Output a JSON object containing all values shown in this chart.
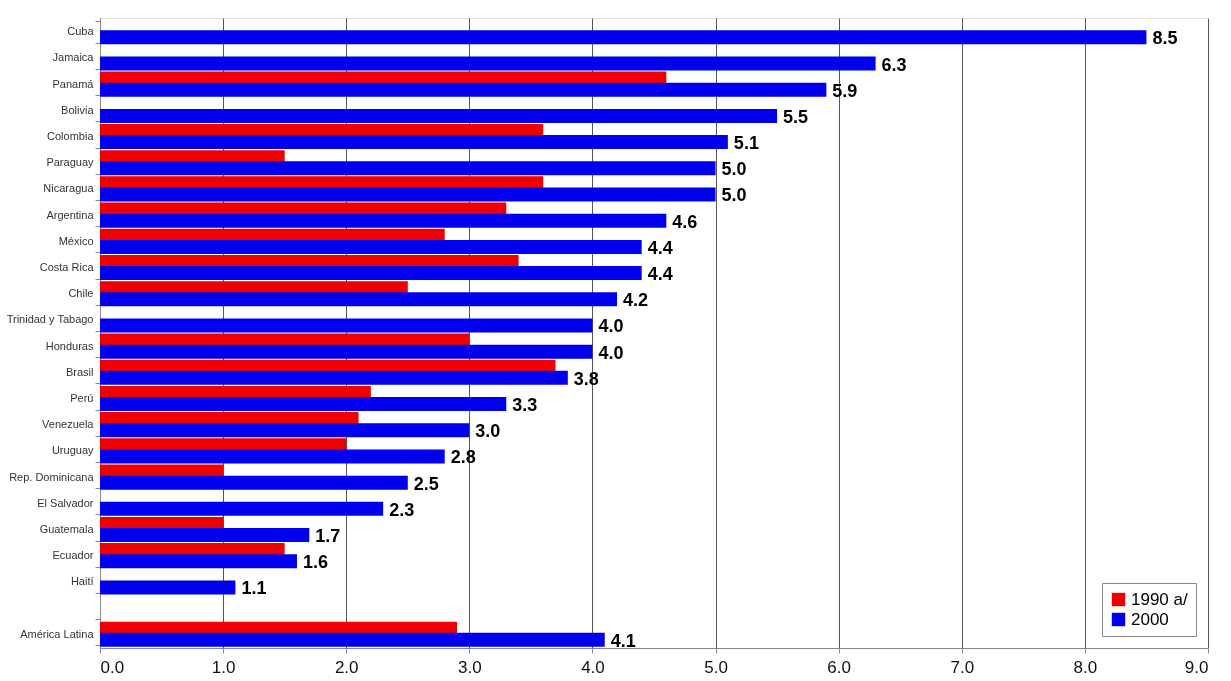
{
  "chart_data": {
    "type": "bar",
    "orientation": "horizontal",
    "categories": [
      "Cuba",
      "Jamaica",
      "Panamá",
      "Bolivia",
      "Colombia",
      "Paraguay",
      "Nicaragua",
      "Argentina",
      "México",
      "Costa Rica",
      "Chile",
      "Trinidad y Tabago",
      "Honduras",
      "Brasil",
      "Perú",
      "Venezuela",
      "Uruguay",
      "Rep. Dominicana",
      "El Salvador",
      "Guatemala",
      "Ecuador",
      "Haití",
      null,
      "América Latina"
    ],
    "series": [
      {
        "name": "1990 a/",
        "color": "#ee0000",
        "values": [
          null,
          null,
          4.6,
          null,
          3.6,
          1.5,
          3.6,
          3.3,
          2.8,
          3.4,
          2.5,
          null,
          3.0,
          3.7,
          2.2,
          2.1,
          2.0,
          1.0,
          null,
          1.0,
          1.5,
          null,
          null,
          2.9
        ]
      },
      {
        "name": "2000",
        "color": "#0000ee",
        "values": [
          8.5,
          6.3,
          5.9,
          5.5,
          5.1,
          5.0,
          5.0,
          4.6,
          4.4,
          4.4,
          4.2,
          4.0,
          4.0,
          3.8,
          3.3,
          3.0,
          2.8,
          2.5,
          2.3,
          1.7,
          1.6,
          1.1,
          null,
          4.1
        ],
        "value_labels": [
          "8.5",
          "6.3",
          "5.9",
          "5.5",
          "5.1",
          "5.0",
          "5.0",
          "4.6",
          "4.4",
          "4.4",
          "4.2",
          "4.0",
          "4.0",
          "3.8",
          "3.3",
          "3.0",
          "2.8",
          "2.5",
          "2.3",
          "1.7",
          "1.6",
          "1.1",
          null,
          "4.1"
        ]
      }
    ],
    "xlim": [
      0,
      9
    ],
    "xticks": [
      {
        "value": 0,
        "label": "0.0"
      },
      {
        "value": 1,
        "label": "1.0"
      },
      {
        "value": 2,
        "label": "2.0"
      },
      {
        "value": 3,
        "label": "3.0"
      },
      {
        "value": 4,
        "label": "4.0"
      },
      {
        "value": 5,
        "label": "5.0"
      },
      {
        "value": 6,
        "label": "6.0"
      },
      {
        "value": 7,
        "label": "7.0"
      },
      {
        "value": 8,
        "label": "8.0"
      },
      {
        "value": 9,
        "label": "9.0"
      }
    ],
    "grid": "x",
    "legend": "bottom right"
  }
}
